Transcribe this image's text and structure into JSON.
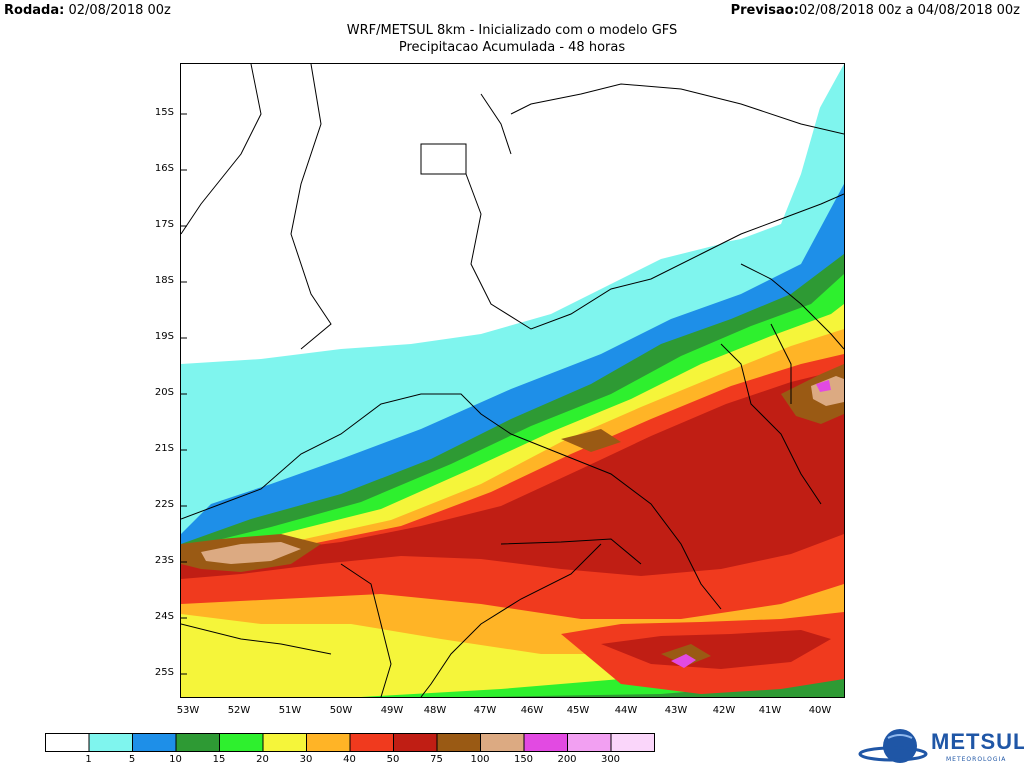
{
  "header": {
    "rodada_label": "Rodada:",
    "rodada_value": "02/08/2018 00z",
    "previsao_label": "Previsao:",
    "previsao_value": "02/08/2018 00z a 04/08/2018 00z",
    "title": "WRF/METSUL 8km - Inicializado com o modelo GFS",
    "subtitle": "Precipitacao Acumulada - 48 horas"
  },
  "map": {
    "lat_labels": [
      "15S",
      "16S",
      "17S",
      "18S",
      "19S",
      "20S",
      "21S",
      "22S",
      "23S",
      "24S",
      "25S"
    ],
    "lon_labels": [
      "53W",
      "52W",
      "51W",
      "50W",
      "49W",
      "48W",
      "47W",
      "46W",
      "45W",
      "44W",
      "43W",
      "42W",
      "41W",
      "40W"
    ]
  },
  "colorbar": {
    "levels": [
      "1",
      "5",
      "10",
      "15",
      "20",
      "30",
      "40",
      "50",
      "75",
      "100",
      "150",
      "200",
      "300"
    ],
    "colors": [
      "#ffffff",
      "#7ff5ee",
      "#1e8fe8",
      "#2e9a34",
      "#2ef02e",
      "#f5f53a",
      "#ffb426",
      "#f03a1e",
      "#c01e14",
      "#9a5a14",
      "#dcaa82",
      "#e24ae2",
      "#f2a0f2",
      "#fad6fa"
    ]
  },
  "logo": {
    "name": "METSUL",
    "tagline": "METEOROLOGIA"
  }
}
